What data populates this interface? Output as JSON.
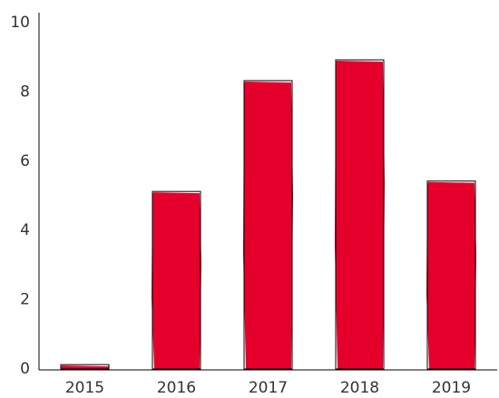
{
  "chart_data": {
    "type": "bar",
    "title": "",
    "xlabel": "",
    "ylabel": "",
    "categories": [
      "2015",
      "2016",
      "2017",
      "2018",
      "2019"
    ],
    "values": [
      0.1,
      5.1,
      8.3,
      8.9,
      5.4
    ],
    "ylim": [
      0,
      10
    ],
    "yticks": [
      "0",
      "2",
      "4",
      "6",
      "8",
      "10"
    ],
    "grid": false,
    "legend": "none",
    "style": "hand-drawn",
    "colors": {
      "bar_fill": "#E4002B",
      "bar_outline": "#000000",
      "axis": "#000000",
      "text": "#333333",
      "background": "#ffffff"
    }
  }
}
